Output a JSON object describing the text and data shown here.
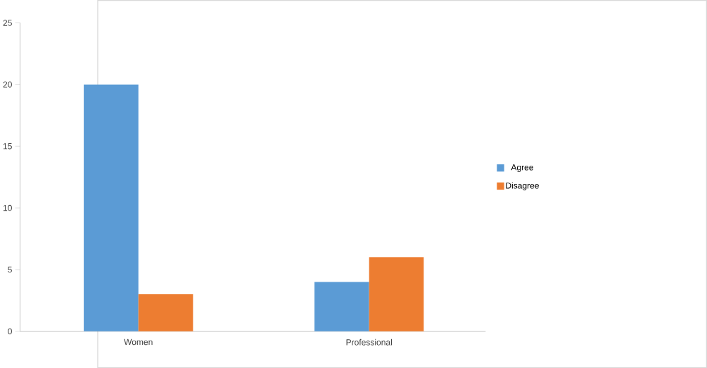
{
  "chart_data": {
    "type": "bar",
    "categories": [
      "Women",
      "Professional"
    ],
    "series": [
      {
        "name": "Agree",
        "color": "#5b9bd5",
        "values": [
          20,
          4
        ]
      },
      {
        "name": "Disagree",
        "color": "#ed7d31",
        "values": [
          3,
          6
        ]
      }
    ],
    "ylim": [
      0,
      25
    ],
    "yticks": [
      0,
      5,
      10,
      15,
      20,
      25
    ],
    "grid": false,
    "legend": "right"
  }
}
